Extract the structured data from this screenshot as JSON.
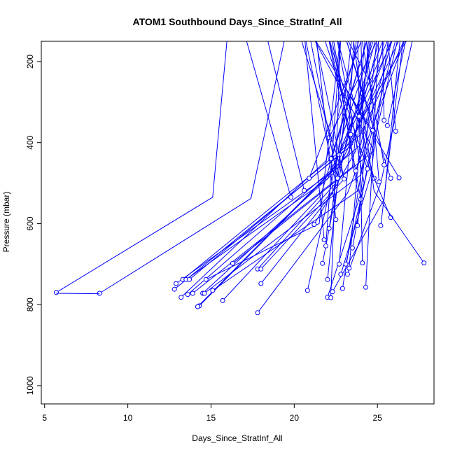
{
  "chart_data": {
    "type": "line",
    "title": "ATOM1 Southbound Days_Since_StratInf_All",
    "xlabel": "Days_Since_StratInf_All",
    "ylabel": "Pressure (mbar)",
    "xlim": [
      4.8,
      28.4
    ],
    "ylim": [
      1045,
      150
    ],
    "y_reversed": true,
    "x_ticks": [
      5,
      10,
      15,
      20,
      25
    ],
    "y_ticks": [
      200,
      400,
      600,
      800,
      1000
    ],
    "grid": false,
    "legend": "none",
    "line_color": "#0000ff",
    "marker": "open-circle",
    "series": [
      {
        "points": [
          [
            5.7,
            770
          ],
          [
            15.1,
            535
          ],
          [
            16.0,
            130
          ]
        ],
        "marker_index": 0
      },
      {
        "points": [
          [
            8.3,
            772
          ],
          [
            17.4,
            538
          ],
          [
            19.5,
            130
          ]
        ],
        "marker_index": 0
      },
      {
        "points": [
          [
            5.7,
            772
          ],
          [
            8.3,
            773
          ]
        ],
        "marker_index": null
      },
      {
        "points": [
          [
            15.7,
            790
          ],
          [
            21.6,
            530
          ],
          [
            24.5,
            130
          ]
        ],
        "marker_index": 0
      },
      {
        "points": [
          [
            14.3,
            803
          ],
          [
            22.3,
            470
          ],
          [
            25.5,
            130
          ]
        ],
        "marker_index": 0
      },
      {
        "points": [
          [
            14.2,
            805
          ],
          [
            23.2,
            430
          ],
          [
            26.0,
            130
          ]
        ],
        "marker_index": 0
      },
      {
        "points": [
          [
            13.2,
            782
          ],
          [
            21.9,
            445
          ],
          [
            24.0,
            130
          ]
        ],
        "marker_index": 0
      },
      {
        "points": [
          [
            12.8,
            762
          ],
          [
            23.5,
            405
          ],
          [
            25.2,
            130
          ]
        ],
        "marker_index": 0
      },
      {
        "points": [
          [
            12.9,
            748
          ],
          [
            22.7,
            460
          ],
          [
            26.5,
            130
          ]
        ],
        "marker_index": 0
      },
      {
        "points": [
          [
            13.3,
            738
          ],
          [
            24.0,
            380
          ],
          [
            26.8,
            130
          ]
        ],
        "marker_index": 0
      },
      {
        "points": [
          [
            13.5,
            738
          ],
          [
            22.0,
            490
          ],
          [
            25.8,
            130
          ]
        ],
        "marker_index": 0
      },
      {
        "points": [
          [
            13.7,
            738
          ],
          [
            23.0,
            420
          ],
          [
            27.0,
            130
          ]
        ],
        "marker_index": 0
      },
      {
        "points": [
          [
            13.6,
            775
          ],
          [
            24.0,
            405
          ],
          [
            25.5,
            130
          ]
        ],
        "marker_index": 0
      },
      {
        "points": [
          [
            13.9,
            772
          ],
          [
            23.5,
            460
          ],
          [
            24.3,
            130
          ]
        ],
        "marker_index": 0
      },
      {
        "points": [
          [
            14.5,
            772
          ],
          [
            22.5,
            470
          ],
          [
            23.5,
            130
          ]
        ],
        "marker_index": 0
      },
      {
        "points": [
          [
            14.6,
            772
          ],
          [
            24.0,
            480
          ],
          [
            26.2,
            130
          ]
        ],
        "marker_index": 0
      },
      {
        "points": [
          [
            14.7,
            738
          ],
          [
            21.5,
            600
          ],
          [
            22.8,
            130
          ]
        ],
        "marker_index": 0
      },
      {
        "points": [
          [
            15.1,
            765
          ],
          [
            23.8,
            520
          ],
          [
            22.3,
            130
          ]
        ],
        "marker_index": 0
      },
      {
        "points": [
          [
            16.3,
            698
          ],
          [
            24.8,
            420
          ],
          [
            21.0,
            130
          ]
        ],
        "marker_index": 0
      },
      {
        "points": [
          [
            17.8,
            712
          ],
          [
            22.5,
            500
          ],
          [
            20.6,
            130
          ]
        ],
        "marker_index": 0
      },
      {
        "points": [
          [
            18.0,
            712
          ],
          [
            23.0,
            490
          ],
          [
            20.3,
            130
          ]
        ],
        "marker_index": 0
      },
      {
        "points": [
          [
            17.8,
            820
          ],
          [
            23.2,
            525
          ],
          [
            26.8,
            130
          ]
        ],
        "marker_index": 0
      },
      {
        "points": [
          [
            18.0,
            748
          ],
          [
            22.3,
            525
          ],
          [
            25.0,
            130
          ]
        ],
        "marker_index": 0
      },
      {
        "points": [
          [
            19.8,
            535
          ],
          [
            17.0,
            130
          ]
        ],
        "marker_index": 0
      },
      {
        "points": [
          [
            20.6,
            518
          ],
          [
            18.3,
            130
          ]
        ],
        "marker_index": 0
      },
      {
        "points": [
          [
            20.9,
            488
          ],
          [
            24.2,
            130
          ]
        ],
        "marker_index": 0
      },
      {
        "points": [
          [
            20.8,
            765
          ],
          [
            22.8,
            395
          ],
          [
            24.9,
            130
          ]
        ],
        "marker_index": 0
      },
      {
        "points": [
          [
            21.2,
            602
          ],
          [
            23.7,
            420
          ],
          [
            24.6,
            130
          ]
        ],
        "marker_index": 0
      },
      {
        "points": [
          [
            21.7,
            698
          ],
          [
            23.3,
            360
          ],
          [
            23.6,
            130
          ]
        ],
        "marker_index": 0
      },
      {
        "points": [
          [
            21.8,
            640
          ],
          [
            20.6,
            130
          ]
        ],
        "marker_index": 0
      },
      {
        "points": [
          [
            21.9,
            655
          ],
          [
            22.8,
            130
          ]
        ],
        "marker_index": 0
      },
      {
        "points": [
          [
            22.0,
            738
          ],
          [
            23.0,
            340
          ],
          [
            22.0,
            130
          ]
        ],
        "marker_index": 0
      },
      {
        "points": [
          [
            22.0,
            782
          ],
          [
            24.2,
            500
          ],
          [
            22.5,
            130
          ]
        ],
        "marker_index": 0
      },
      {
        "points": [
          [
            22.2,
            783
          ],
          [
            22.8,
            130
          ]
        ],
        "marker_index": 0
      },
      {
        "points": [
          [
            22.1,
            612
          ],
          [
            23.8,
            130
          ]
        ],
        "marker_index": 0
      },
      {
        "points": [
          [
            22.2,
            440
          ],
          [
            24.5,
            130
          ]
        ],
        "marker_index": 0
      },
      {
        "points": [
          [
            22.3,
            768
          ],
          [
            25.4,
            540
          ],
          [
            26.4,
            130
          ]
        ],
        "marker_index": 0
      },
      {
        "points": [
          [
            22.1,
            388
          ],
          [
            25.2,
            130
          ]
        ],
        "marker_index": 0
      },
      {
        "points": [
          [
            22.5,
            590
          ],
          [
            21.3,
            130
          ]
        ],
        "marker_index": 0
      },
      {
        "points": [
          [
            22.7,
            700
          ],
          [
            23.5,
            340
          ],
          [
            22.0,
            130
          ]
        ],
        "marker_index": 0
      },
      {
        "points": [
          [
            22.8,
            725
          ],
          [
            24.6,
            480
          ],
          [
            25.7,
            130
          ]
        ],
        "marker_index": 0
      },
      {
        "points": [
          [
            22.9,
            760
          ],
          [
            24.2,
            430
          ],
          [
            24.0,
            130
          ]
        ],
        "marker_index": 0
      },
      {
        "points": [
          [
            23.1,
            700
          ],
          [
            26.3,
            130
          ]
        ],
        "marker_index": 0
      },
      {
        "points": [
          [
            23.2,
            725
          ],
          [
            25.2,
            500
          ],
          [
            27.2,
            130
          ]
        ],
        "marker_index": 0
      },
      {
        "points": [
          [
            23.3,
            710
          ],
          [
            24.5,
            130
          ]
        ],
        "marker_index": 0
      },
      {
        "points": [
          [
            23.5,
            660
          ],
          [
            24.8,
            370
          ],
          [
            23.0,
            130
          ]
        ],
        "marker_index": 0
      },
      {
        "points": [
          [
            23.8,
            605
          ],
          [
            25.0,
            130
          ]
        ],
        "marker_index": 0
      },
      {
        "points": [
          [
            24.0,
            540
          ],
          [
            22.2,
            130
          ]
        ],
        "marker_index": 0
      },
      {
        "points": [
          [
            24.1,
            697
          ],
          [
            23.8,
            130
          ]
        ],
        "marker_index": 0
      },
      {
        "points": [
          [
            24.3,
            757
          ],
          [
            25.1,
            130
          ]
        ],
        "marker_index": 0
      },
      {
        "points": [
          [
            24.4,
            465
          ],
          [
            21.7,
            130
          ]
        ],
        "marker_index": 0
      },
      {
        "points": [
          [
            24.5,
            248
          ],
          [
            23.0,
            130
          ]
        ],
        "marker_index": 0
      },
      {
        "points": [
          [
            24.7,
            370
          ],
          [
            21.0,
            130
          ]
        ],
        "marker_index": 0
      },
      {
        "points": [
          [
            24.8,
            488
          ],
          [
            22.5,
            130
          ]
        ],
        "marker_index": 0
      },
      {
        "points": [
          [
            25.1,
            497
          ],
          [
            24.3,
            130
          ]
        ],
        "marker_index": 0
      },
      {
        "points": [
          [
            25.2,
            605
          ],
          [
            26.6,
            130
          ]
        ],
        "marker_index": 0
      },
      {
        "points": [
          [
            25.4,
            455
          ],
          [
            24.0,
            130
          ]
        ],
        "marker_index": 0
      },
      {
        "points": [
          [
            25.4,
            345
          ],
          [
            25.3,
            130
          ]
        ],
        "marker_index": 0
      },
      {
        "points": [
          [
            25.6,
            358
          ],
          [
            26.8,
            130
          ]
        ],
        "marker_index": 0
      },
      {
        "points": [
          [
            25.8,
            585
          ],
          [
            24.2,
            430
          ]
        ],
        "marker_index": 0
      },
      {
        "points": [
          [
            25.8,
            488
          ],
          [
            23.0,
            130
          ]
        ],
        "marker_index": 0
      },
      {
        "points": [
          [
            26.1,
            372
          ],
          [
            25.6,
            130
          ]
        ],
        "marker_index": 0
      },
      {
        "points": [
          [
            26.3,
            487
          ],
          [
            22.7,
            240
          ]
        ],
        "marker_index": 0
      },
      {
        "points": [
          [
            27.8,
            697
          ],
          [
            24.8,
            520
          ],
          [
            23.5,
            130
          ]
        ],
        "marker_index": 0
      },
      {
        "points": [
          [
            22.7,
            430
          ],
          [
            26.1,
            130
          ]
        ],
        "marker_index": 0
      },
      {
        "points": [
          [
            23.0,
            490
          ],
          [
            21.2,
            130
          ]
        ],
        "marker_index": 0
      },
      {
        "points": [
          [
            23.4,
            380
          ],
          [
            22.0,
            130
          ]
        ],
        "marker_index": 0
      },
      {
        "points": [
          [
            23.9,
            335
          ],
          [
            24.7,
            130
          ]
        ],
        "marker_index": 0
      },
      {
        "points": [
          [
            22.6,
            488
          ],
          [
            20.9,
            130
          ]
        ],
        "marker_index": 0
      },
      {
        "points": [
          [
            23.7,
            470
          ],
          [
            26.0,
            130
          ]
        ],
        "marker_index": 0
      }
    ]
  }
}
